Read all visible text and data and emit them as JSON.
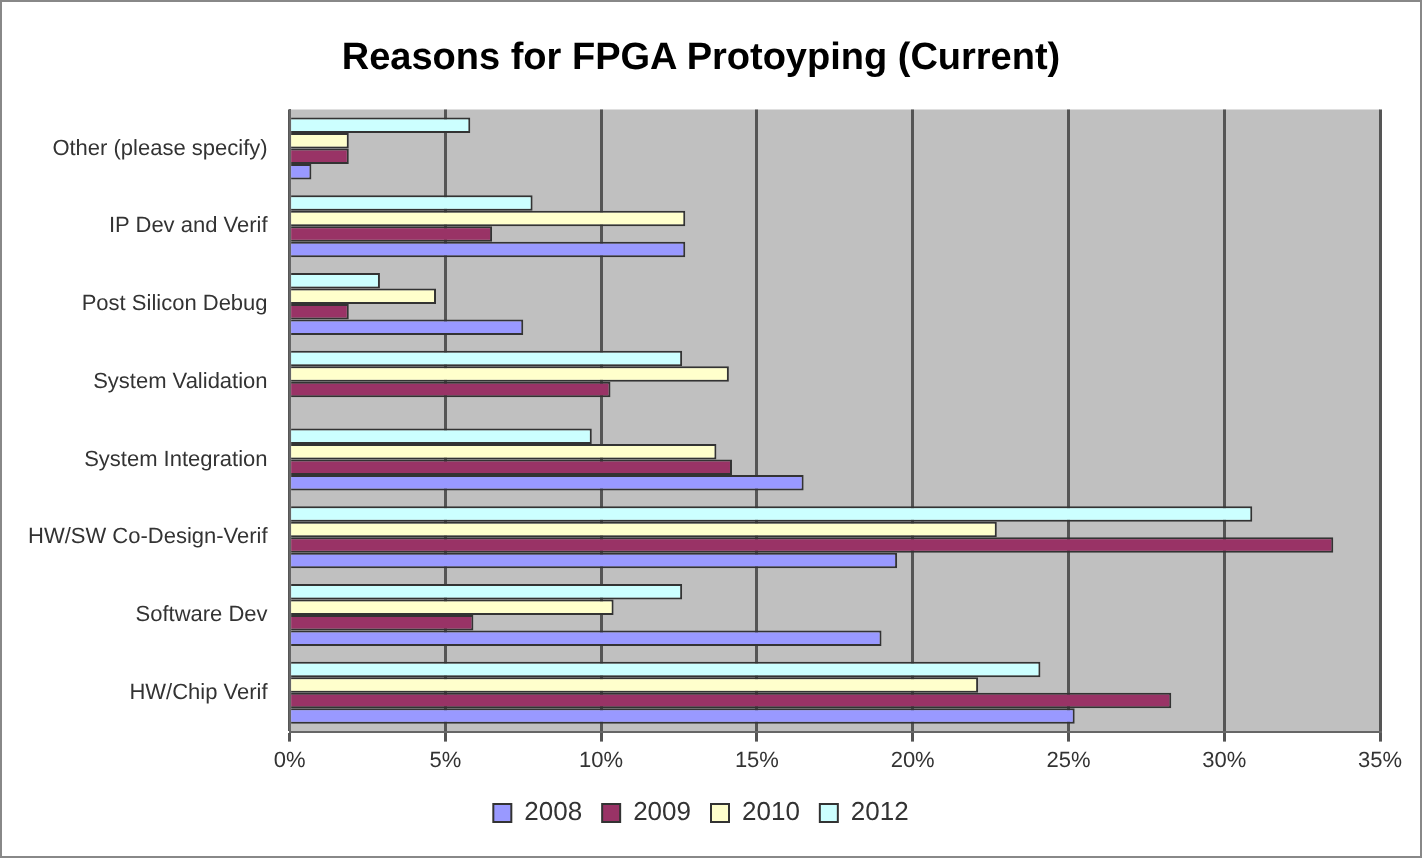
{
  "chart_data": {
    "type": "bar",
    "orientation": "horizontal",
    "title": "Reasons for FPGA Protoyping (Current)",
    "categories": [
      "Other (please specify)",
      "IP Dev and Verif",
      "Post Silicon Debug",
      "System Validation",
      "System Integration",
      "HW/SW Co-Design-Verif",
      "Software Dev",
      "HW/Chip Verif"
    ],
    "series": [
      {
        "name": "2008",
        "color": "#9999ff",
        "values": [
          0.7,
          12.7,
          7.5,
          null,
          16.5,
          19.5,
          19.0,
          25.2
        ]
      },
      {
        "name": "2009",
        "color": "#993366",
        "values": [
          1.9,
          6.5,
          1.9,
          10.3,
          14.2,
          33.5,
          5.9,
          28.3
        ]
      },
      {
        "name": "2010",
        "color": "#ffffcc",
        "values": [
          1.9,
          12.7,
          4.7,
          14.1,
          13.7,
          22.7,
          10.4,
          22.1
        ]
      },
      {
        "name": "2012",
        "color": "#ccffff",
        "values": [
          5.8,
          7.8,
          2.9,
          12.6,
          9.7,
          30.9,
          12.6,
          24.1
        ]
      }
    ],
    "xlim": [
      0,
      35
    ],
    "xticks": [
      {
        "value": 0,
        "label": "0%"
      },
      {
        "value": 5,
        "label": "5%"
      },
      {
        "value": 10,
        "label": "10%"
      },
      {
        "value": 15,
        "label": "15%"
      },
      {
        "value": 20,
        "label": "20%"
      },
      {
        "value": 25,
        "label": "25%"
      },
      {
        "value": 30,
        "label": "30%"
      },
      {
        "value": 35,
        "label": "35%"
      }
    ],
    "grid": "x",
    "legend": "bottom"
  }
}
